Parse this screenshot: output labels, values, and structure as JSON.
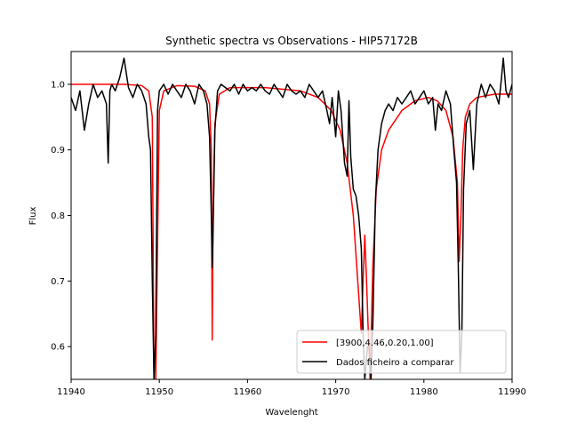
{
  "chart_data": {
    "type": "line",
    "title": "Synthetic spectra vs Observations - HIP57172B",
    "xlabel": "Wavelenght",
    "ylabel": "Flux",
    "xlim": [
      11940,
      11990
    ],
    "ylim": [
      0.55,
      1.05
    ],
    "xticks": [
      11940,
      11950,
      11960,
      11970,
      11980,
      11990
    ],
    "yticks": [
      0.6,
      0.7,
      0.8,
      0.9,
      1.0
    ],
    "xtick_labels": [
      "11940",
      "11950",
      "11960",
      "11970",
      "11980",
      "11990"
    ],
    "ytick_labels": [
      "0.6",
      "0.7",
      "0.8",
      "0.9",
      "1.0"
    ],
    "grid": false,
    "legend_position": "lower-right",
    "series": [
      {
        "name": "[3900,4.46,0.20,1.00]",
        "color": "#ff0000",
        "x": [
          11940,
          11946,
          11948,
          11948.8,
          11949.2,
          11949.4,
          11949.6,
          11950.0,
          11950.5,
          11952,
          11954,
          11955.2,
          11955.7,
          11955.9,
          11956.0,
          11956.1,
          11956.3,
          11956.8,
          11958,
          11962,
          11966,
          11968,
          11969.5,
          11970.5,
          11971.3,
          11972.0,
          11972.5,
          11972.9,
          11973.1,
          11973.3,
          11973.5,
          11973.7,
          11973.9,
          11974.2,
          11974.6,
          11975.2,
          11976,
          11977.5,
          11979,
          11980.5,
          11981.5,
          11982.5,
          11983.3,
          11983.8,
          11984.0,
          11984.2,
          11984.4,
          11984.7,
          11985.2,
          11986,
          11988,
          11990
        ],
        "y": [
          1.0,
          1.0,
          0.998,
          0.99,
          0.95,
          0.55,
          0.55,
          0.96,
          0.99,
          0.998,
          0.997,
          0.99,
          0.97,
          0.9,
          0.61,
          0.8,
          0.94,
          0.985,
          0.995,
          0.995,
          0.99,
          0.98,
          0.96,
          0.93,
          0.88,
          0.8,
          0.7,
          0.62,
          0.7,
          0.77,
          0.7,
          0.62,
          0.55,
          0.72,
          0.84,
          0.9,
          0.93,
          0.96,
          0.975,
          0.98,
          0.975,
          0.96,
          0.92,
          0.85,
          0.73,
          0.8,
          0.9,
          0.95,
          0.97,
          0.98,
          0.985,
          0.985
        ]
      },
      {
        "name": "Dados ficheiro a comparar",
        "color": "#000000",
        "x": [
          11940,
          11940.5,
          11941,
          11941.5,
          11942,
          11942.5,
          11943,
          11943.5,
          11944,
          11944.2,
          11944.4,
          11944.6,
          11945,
          11945.5,
          11946,
          11946.5,
          11947,
          11947.5,
          11948,
          11948.5,
          11948.8,
          11949.0,
          11949.2,
          11949.4,
          11949.6,
          11949.8,
          11950.0,
          11950.5,
          11951,
          11951.5,
          11952,
          11952.5,
          11953,
          11953.5,
          11954,
          11954.5,
          11955,
          11955.4,
          11955.7,
          11955.9,
          11956.0,
          11956.1,
          11956.3,
          11956.6,
          11957,
          11957.5,
          11958,
          11958.5,
          11959,
          11959.5,
          11960,
          11960.5,
          11961,
          11961.5,
          11962,
          11962.5,
          11963,
          11963.5,
          11964,
          11964.5,
          11965,
          11965.5,
          11966,
          11966.5,
          11967,
          11967.5,
          11968,
          11968.5,
          11969,
          11969.3,
          11969.6,
          11970,
          11970.3,
          11970.6,
          11971,
          11971.3,
          11971.5,
          11971.7,
          11972,
          11972.3,
          11972.6,
          11972.9,
          11973.1,
          11973.3,
          11973.6,
          11973.8,
          11974.0,
          11974.2,
          11974.5,
          11974.8,
          11975.2,
          11975.6,
          11976,
          11976.5,
          11977,
          11977.5,
          11978,
          11978.5,
          11979,
          11979.5,
          11980,
          11980.5,
          11981,
          11981.3,
          11981.6,
          11982,
          11982.5,
          11983,
          11983.4,
          11983.7,
          11983.9,
          11984.1,
          11984.3,
          11984.5,
          11984.8,
          11985.2,
          11985.6,
          11986,
          11986.5,
          11987,
          11987.5,
          11988,
          11988.5,
          11988.8,
          11989.0,
          11989.3,
          11989.6,
          11990
        ],
        "y": [
          0.98,
          0.96,
          0.99,
          0.93,
          0.97,
          1.0,
          0.98,
          0.99,
          0.97,
          0.88,
          0.99,
          1.0,
          0.99,
          1.01,
          1.04,
          0.995,
          0.98,
          1.0,
          0.99,
          0.97,
          0.92,
          0.9,
          0.7,
          0.55,
          0.62,
          0.96,
          0.99,
          1.0,
          0.985,
          1.0,
          0.99,
          0.98,
          1.0,
          0.99,
          0.97,
          1.0,
          0.99,
          0.97,
          0.92,
          0.8,
          0.72,
          0.78,
          0.93,
          0.99,
          1.0,
          0.995,
          0.99,
          1.0,
          0.985,
          1.0,
          0.99,
          0.995,
          0.99,
          1.0,
          0.99,
          0.985,
          1.0,
          0.99,
          0.98,
          1.0,
          0.99,
          0.985,
          0.99,
          0.98,
          1.0,
          0.99,
          0.98,
          0.99,
          0.96,
          0.94,
          0.98,
          0.92,
          0.99,
          0.96,
          0.88,
          0.86,
          0.975,
          0.89,
          0.84,
          0.83,
          0.8,
          0.75,
          0.62,
          0.55,
          0.6,
          0.6,
          0.55,
          0.63,
          0.82,
          0.9,
          0.94,
          0.96,
          0.97,
          0.96,
          0.98,
          0.97,
          0.98,
          0.99,
          0.97,
          0.98,
          0.99,
          0.97,
          0.98,
          0.93,
          0.97,
          0.96,
          0.99,
          0.97,
          0.9,
          0.85,
          0.72,
          0.56,
          0.62,
          0.84,
          0.94,
          0.96,
          0.87,
          0.97,
          1.0,
          0.98,
          1.0,
          0.99,
          0.97,
          1.01,
          1.04,
          0.99,
          0.98,
          1.0
        ]
      }
    ]
  }
}
